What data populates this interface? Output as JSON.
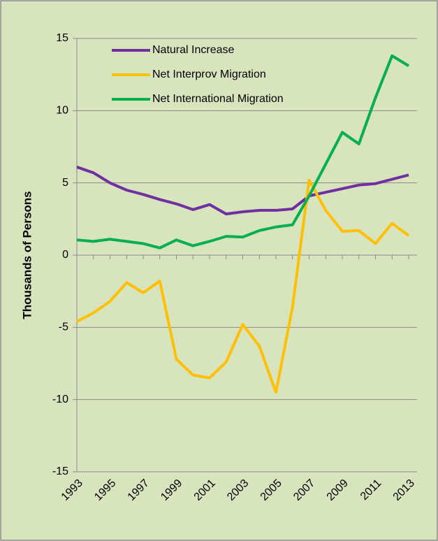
{
  "chart_data": {
    "type": "line",
    "y_axis_label": "Thousands of Persons",
    "x": [
      1993,
      1994,
      1995,
      1996,
      1997,
      1998,
      1999,
      2000,
      2001,
      2002,
      2003,
      2004,
      2005,
      2006,
      2007,
      2008,
      2009,
      2010,
      2011,
      2012,
      2013
    ],
    "xlim": [
      1993,
      2013
    ],
    "xticks": [
      1993,
      1995,
      1997,
      1999,
      2001,
      2003,
      2005,
      2007,
      2009,
      2011,
      2013
    ],
    "ylim": [
      -15,
      15
    ],
    "yticks": [
      -15,
      -10,
      -5,
      0,
      5,
      10,
      15
    ],
    "grid": true,
    "legend": "top-left",
    "series": [
      {
        "name": "Natural Increase",
        "color": "#7030a0",
        "values": [
          6.1,
          5.7,
          5.0,
          4.5,
          4.2,
          3.85,
          3.55,
          3.15,
          3.5,
          2.85,
          3.0,
          3.1,
          3.1,
          3.2,
          4.1,
          4.35,
          4.6,
          4.85,
          4.95,
          5.25,
          5.55
        ]
      },
      {
        "name": "Net Interprov Migration",
        "color": "#ffc000",
        "values": [
          -4.6,
          -4.0,
          -3.2,
          -1.9,
          -2.6,
          -1.8,
          -7.2,
          -8.3,
          -8.5,
          -7.4,
          -4.8,
          -6.3,
          -9.5,
          -3.6,
          5.2,
          3.1,
          1.65,
          1.7,
          0.8,
          2.2,
          1.35
        ]
      },
      {
        "name": "Net International Migration",
        "color": "#00b050",
        "values": [
          1.05,
          0.95,
          1.1,
          0.95,
          0.8,
          0.5,
          1.05,
          0.65,
          0.95,
          1.3,
          1.25,
          1.7,
          1.95,
          2.1,
          4.1,
          6.3,
          8.5,
          7.7,
          10.9,
          13.8,
          13.1
        ]
      }
    ]
  }
}
